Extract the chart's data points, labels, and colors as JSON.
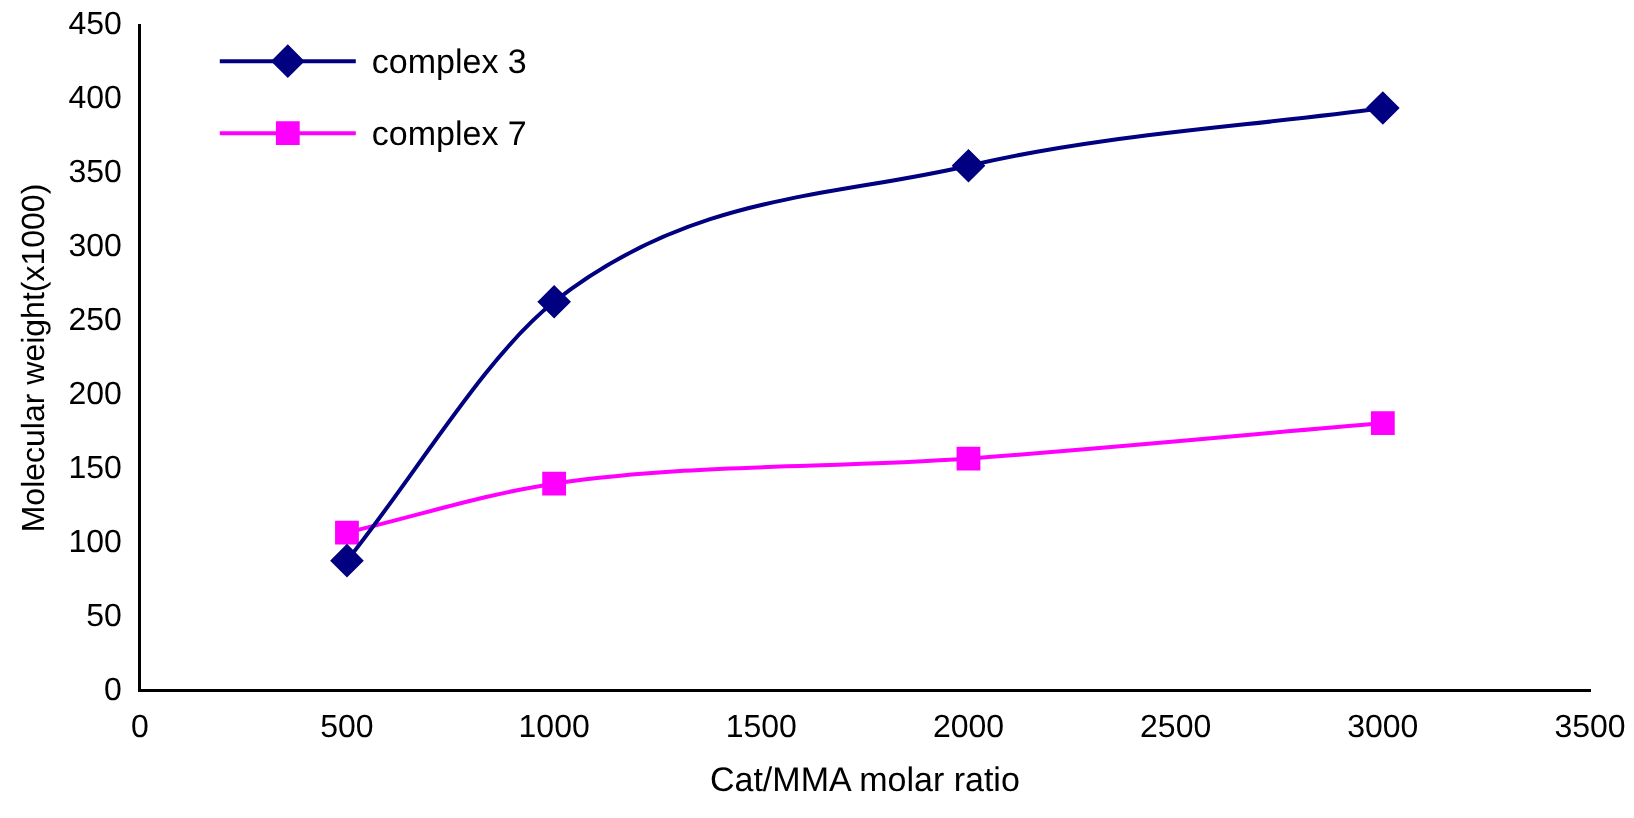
{
  "chart_data": {
    "type": "line",
    "xlabel": "Cat/MMA molar ratio",
    "ylabel": "Molecular weight(x1000)",
    "x": [
      500,
      1000,
      2000,
      3000
    ],
    "series": [
      {
        "name": "complex 3",
        "color": "#000080",
        "marker": "diamond",
        "values": [
          88,
          263,
          355,
          394
        ]
      },
      {
        "name": "complex 7",
        "color": "#ff00ff",
        "marker": "square",
        "values": [
          107,
          140,
          157,
          181
        ]
      }
    ],
    "xlim": [
      0,
      3500
    ],
    "xticks": [
      0,
      500,
      1000,
      1500,
      2000,
      2500,
      3000,
      3500
    ],
    "ylim": [
      0,
      450
    ],
    "yticks": [
      0,
      50,
      100,
      150,
      200,
      250,
      300,
      350,
      400,
      450
    ],
    "grid": false,
    "legend": "top left",
    "line_style": "solid"
  }
}
